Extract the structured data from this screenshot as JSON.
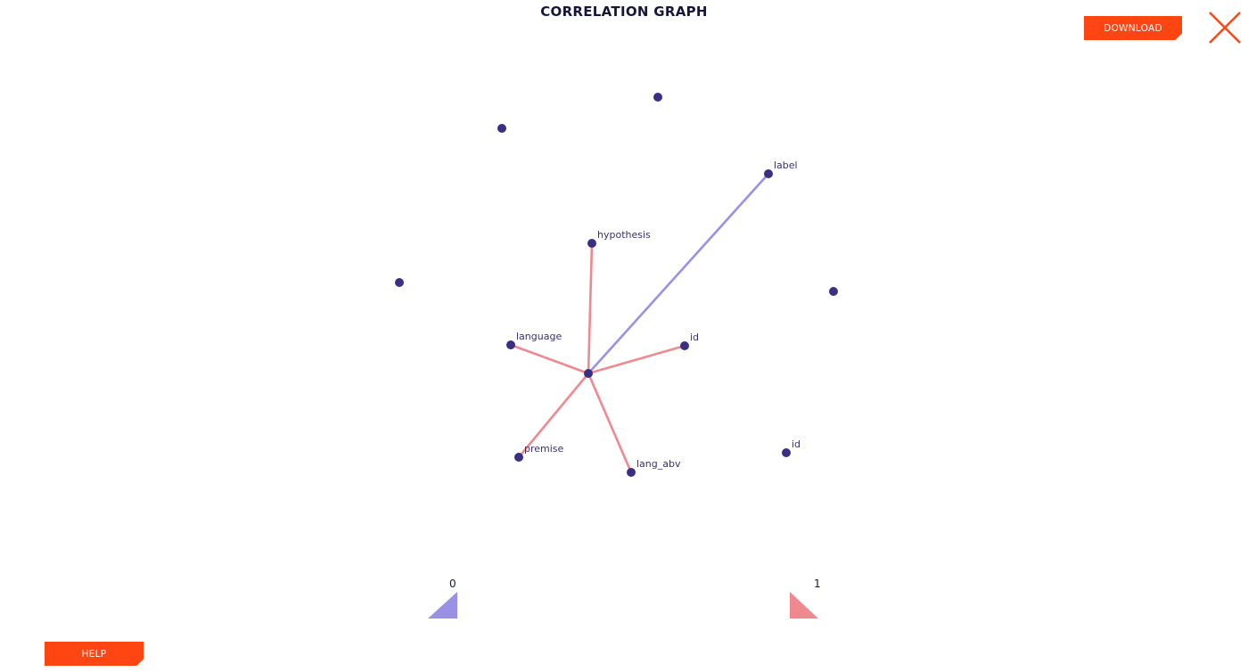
{
  "header": {
    "title": "CORRELATION GRAPH",
    "download_label": "DOWNLOAD"
  },
  "footer": {
    "help_label": "HELP"
  },
  "graph": {
    "node_color": "#3a2f82",
    "center_node": "center",
    "nodes": [
      {
        "id": "center",
        "label": ""
      },
      {
        "id": "label",
        "label": "label"
      },
      {
        "id": "hypothesis",
        "label": "hypothesis"
      },
      {
        "id": "language",
        "label": "language"
      },
      {
        "id": "id-linked",
        "label": "id"
      },
      {
        "id": "premise",
        "label": "premise"
      },
      {
        "id": "lang_abv",
        "label": "lang_abv"
      },
      {
        "id": "id-isolated",
        "label": "id"
      },
      {
        "id": "unlabeled-1",
        "label": ""
      },
      {
        "id": "unlabeled-2",
        "label": ""
      },
      {
        "id": "unlabeled-3",
        "label": ""
      },
      {
        "id": "unlabeled-4",
        "label": ""
      }
    ],
    "edges": [
      {
        "source": "center",
        "target": "label",
        "color": "#9a90e6"
      },
      {
        "source": "center",
        "target": "hypothesis",
        "color": "#f08890"
      },
      {
        "source": "center",
        "target": "language",
        "color": "#f08890"
      },
      {
        "source": "center",
        "target": "id-linked",
        "color": "#f08890"
      },
      {
        "source": "center",
        "target": "premise",
        "color": "#f08890"
      },
      {
        "source": "center",
        "target": "lang_abv",
        "color": "#f08890"
      }
    ]
  },
  "scale": {
    "min_label": "0",
    "max_label": "1",
    "low_color": "#9a90e6",
    "high_color": "#f08890",
    "gradient_start": "#3a2f82",
    "gradient_end": "#ff4612"
  }
}
